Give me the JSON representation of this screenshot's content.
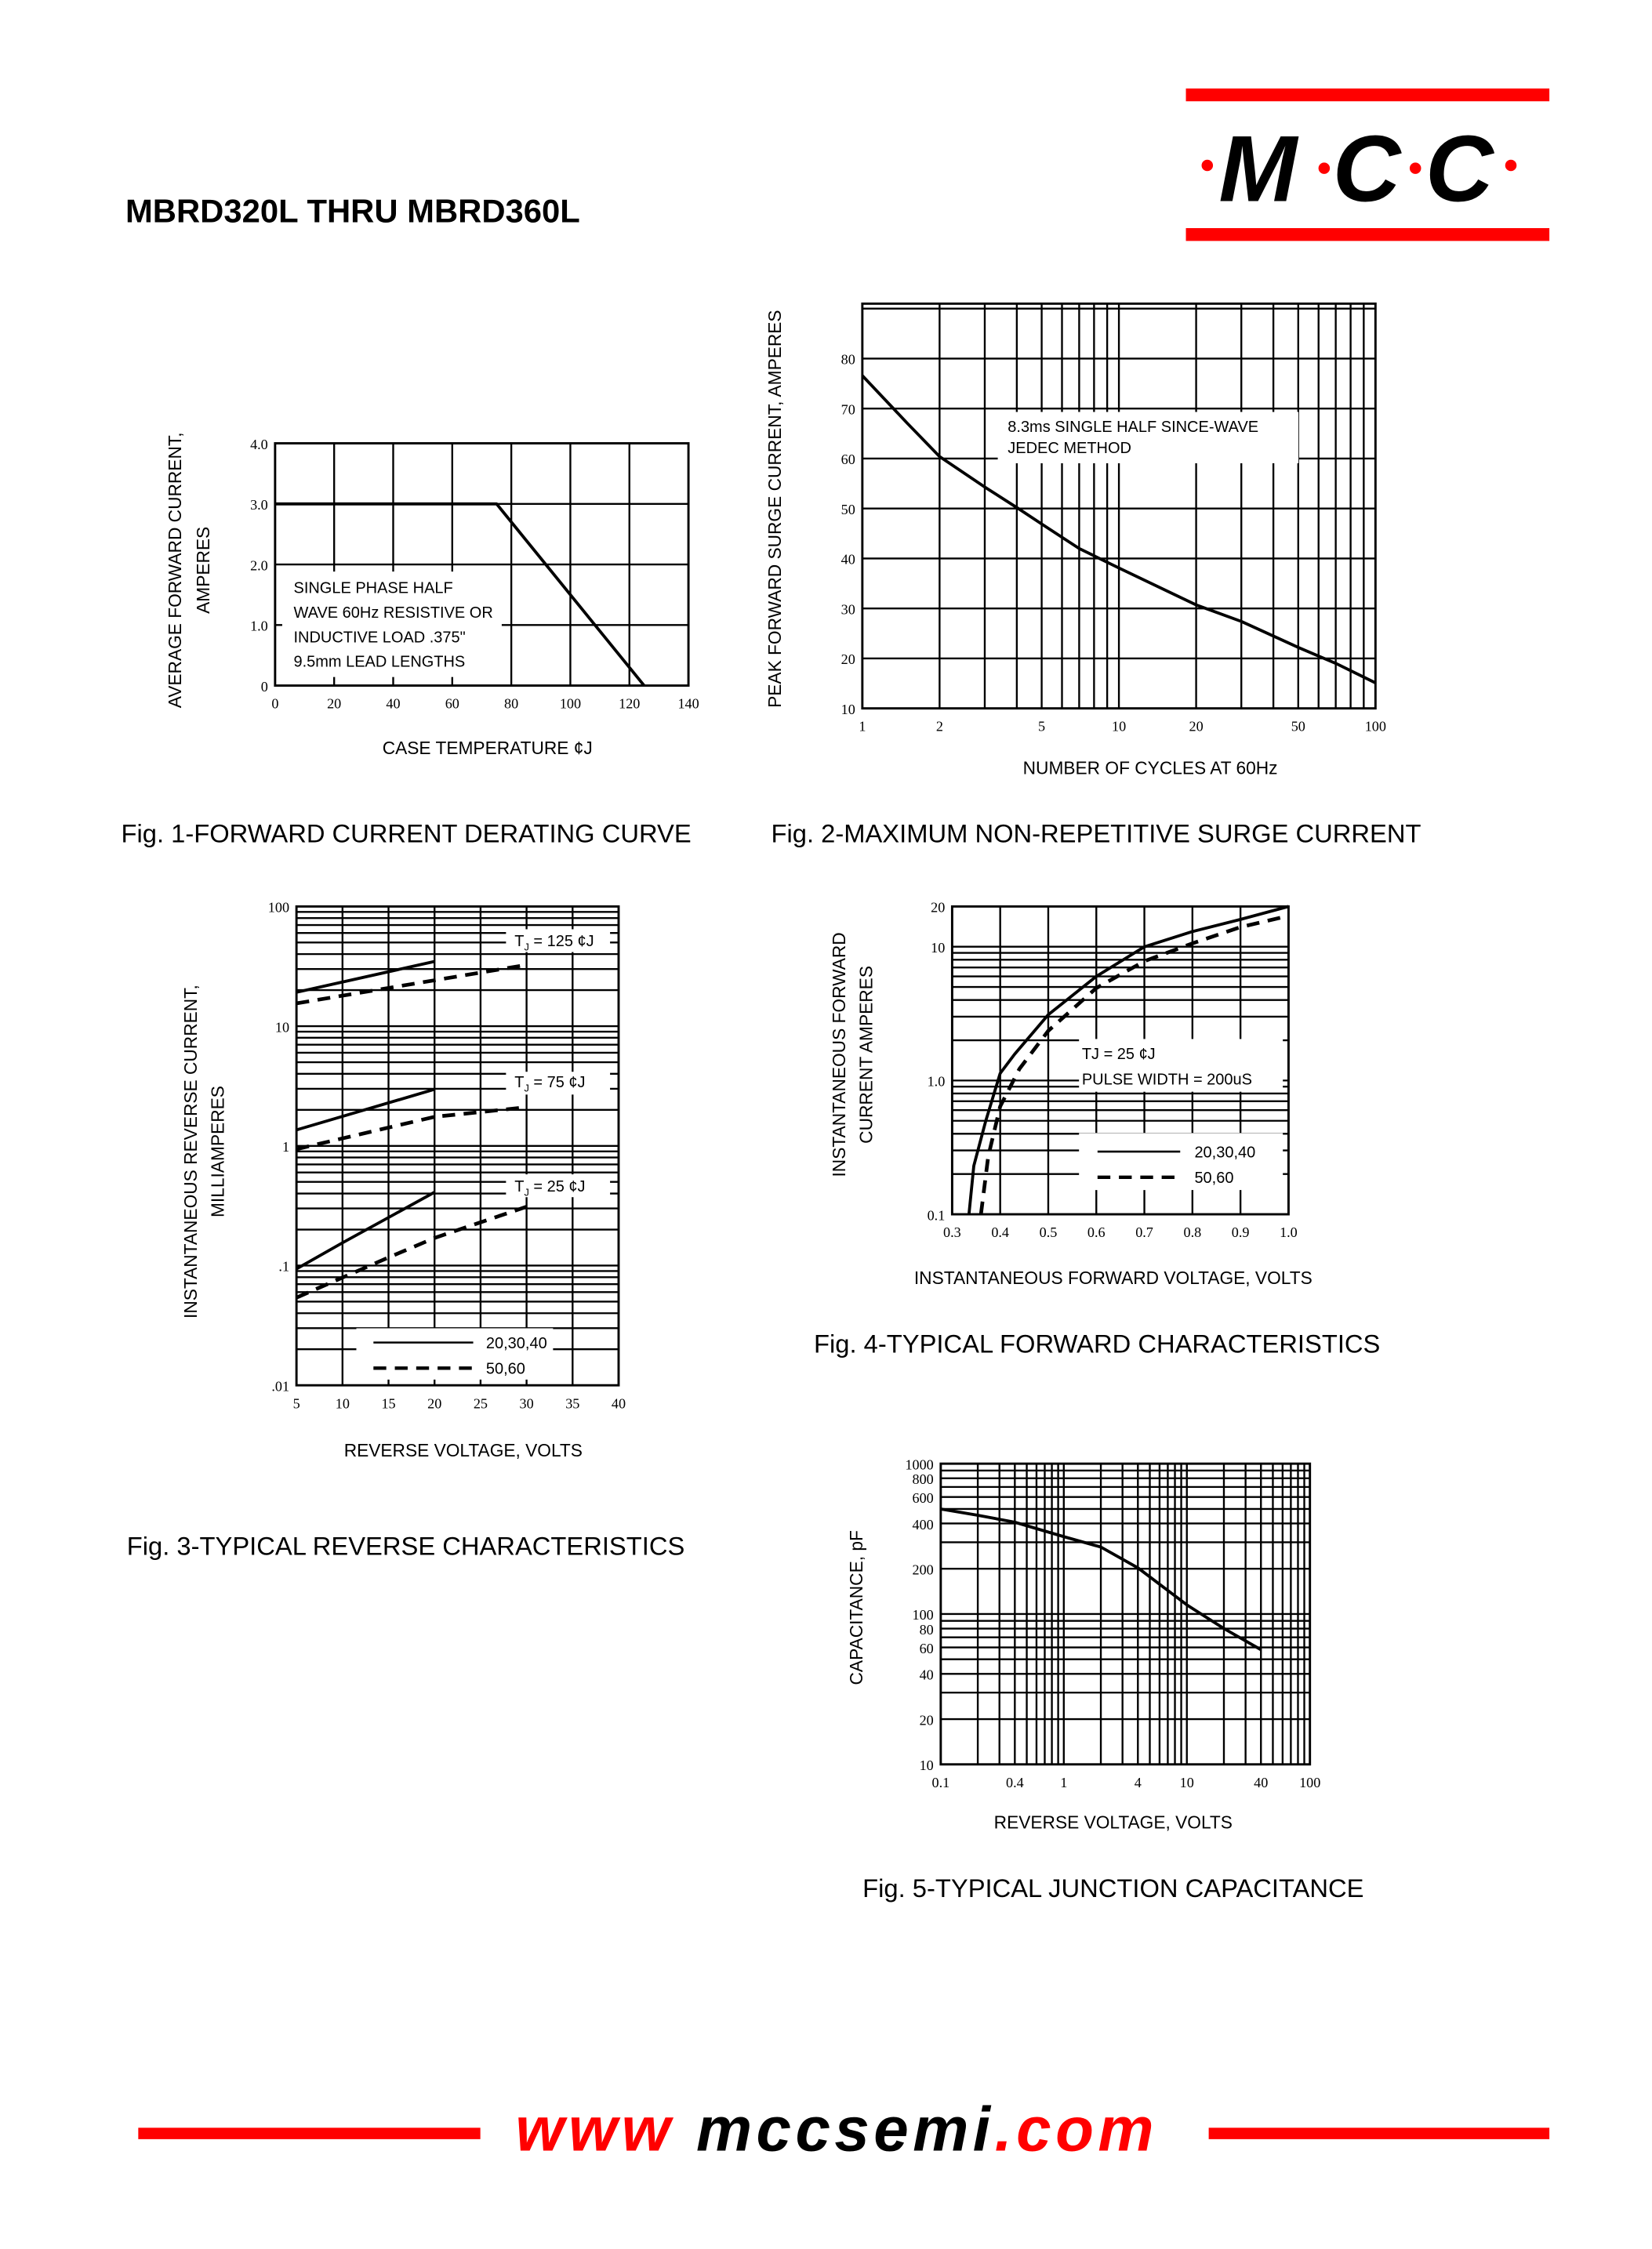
{
  "header": {
    "title": "MBRD320L THRU MBRD360L"
  },
  "logo": {
    "letters": [
      "M",
      "C",
      "C"
    ],
    "brand_color": "#ff0000"
  },
  "footer": {
    "prefix": "www ",
    "domain": "mccsemi",
    "suffix": ".com"
  },
  "chart_data": [
    {
      "type": "line",
      "caption": "Fig. 1-FORWARD CURRENT DERATING CURVE",
      "ylabel": [
        "AVERAGE FORWARD CURRENT,",
        "AMPERES"
      ],
      "xlabel": "CASE TEMPERATURE ¢J",
      "xlim": [
        0,
        140
      ],
      "ylim": [
        0,
        4
      ],
      "xscale": "linear",
      "yscale": "linear",
      "x_ticks": [
        0,
        20,
        40,
        60,
        80,
        100,
        120,
        140
      ],
      "x_tick_labels": [
        "0",
        "20",
        "40",
        "60",
        "80",
        "100",
        "120",
        "140"
      ],
      "y_ticks": [
        0,
        1,
        2,
        3,
        4
      ],
      "y_tick_labels": [
        "0",
        "1.0",
        "2.0",
        "3.0",
        "4.0"
      ],
      "grid": true,
      "notes": [
        "SINGLE PHASE HALF",
        "WAVE 60Hz RESISTIVE OR",
        "INDUCTIVE LOAD .375\"",
        "9.5mm LEAD LENGTHS"
      ],
      "series": [
        {
          "style": "solid",
          "x": [
            0,
            75,
            125
          ],
          "y": [
            3,
            3,
            0
          ]
        }
      ]
    },
    {
      "type": "line",
      "caption": "Fig. 2-MAXIMUM NON-REPETITIVE SURGE CURRENT",
      "ylabel": [
        "PEAK FORWARD SURGE CURRENT, AMPERES"
      ],
      "xlabel": "NUMBER OF CYCLES AT 60Hz",
      "xlim": [
        1,
        100
      ],
      "ylim": [
        10,
        91
      ],
      "xscale": "log",
      "yscale": "linear",
      "x_ticks": [
        1,
        2,
        5,
        10,
        20,
        50,
        100
      ],
      "x_tick_labels": [
        "1",
        "2",
        "5",
        "10",
        "20",
        "50",
        "100"
      ],
      "y_ticks": [
        10,
        20,
        30,
        40,
        50,
        60,
        70,
        80
      ],
      "y_tick_labels": [
        "10",
        "20",
        "30",
        "40",
        "50",
        "60",
        "70",
        "80"
      ],
      "grid": true,
      "notes": [
        "8.3ms SINGLE HALF SINCE-WAVE",
        "JEDEC METHOD"
      ],
      "series": [
        {
          "style": "solid",
          "x": [
            1,
            1.5,
            2,
            3,
            4,
            5,
            7,
            10,
            20,
            30,
            50,
            70,
            100
          ],
          "y": [
            76.6,
            67,
            60.4,
            54.3,
            50.2,
            46.9,
            42,
            38.1,
            30.7,
            27.4,
            22.2,
            19,
            15.1
          ]
        }
      ]
    },
    {
      "type": "line",
      "caption": "Fig. 3-TYPICAL REVERSE CHARACTERISTICS",
      "ylabel": [
        "INSTANTANEOUS REVERSE CURRENT,",
        "MILLIAMPERES"
      ],
      "xlabel": "REVERSE VOLTAGE, VOLTS",
      "xlim": [
        5,
        40
      ],
      "ylim": [
        0.01,
        100
      ],
      "xscale": "linear",
      "yscale": "log",
      "x_ticks": [
        5,
        10,
        15,
        20,
        25,
        30,
        35,
        40
      ],
      "x_tick_labels": [
        "5",
        "10",
        "15",
        "20",
        "25",
        "30",
        "35",
        "40"
      ],
      "y_ticks": [
        0.01,
        0.1,
        1,
        10,
        100
      ],
      "y_tick_labels": [
        ".01",
        ".1",
        "1",
        "10",
        "100"
      ],
      "grid": true,
      "temp_labels": [
        {
          "t": "T",
          "sub": "J",
          "rest": " = 125 ¢J"
        },
        {
          "t": "T",
          "sub": "J",
          "rest": " = 75 ¢J"
        },
        {
          "t": "T",
          "sub": "J",
          "rest": " = 25 ¢J"
        }
      ],
      "legend": [
        {
          "style": "solid",
          "label": "20,30,40"
        },
        {
          "style": "dashed",
          "label": "50,60"
        }
      ],
      "series": [
        {
          "group": "TJ=125",
          "style": "solid",
          "x": [
            5,
            20
          ],
          "y": [
            19.2,
            34.7
          ]
        },
        {
          "group": "TJ=125",
          "style": "dashed",
          "x": [
            5,
            30
          ],
          "y": [
            15.5,
            32.5
          ]
        },
        {
          "group": "TJ=75",
          "style": "solid",
          "x": [
            5,
            20
          ],
          "y": [
            1.36,
            2.97
          ]
        },
        {
          "group": "TJ=75",
          "style": "dashed",
          "x": [
            5,
            20,
            30
          ],
          "y": [
            0.94,
            1.75,
            2.1
          ]
        },
        {
          "group": "TJ=25",
          "style": "solid",
          "x": [
            5,
            10,
            20
          ],
          "y": [
            0.094,
            0.155,
            0.41
          ]
        },
        {
          "group": "TJ=25",
          "style": "dashed",
          "x": [
            5,
            15,
            20,
            30
          ],
          "y": [
            0.054,
            0.117,
            0.17,
            0.31
          ]
        }
      ]
    },
    {
      "type": "line",
      "caption": "Fig. 4-TYPICAL FORWARD CHARACTERISTICS",
      "ylabel": [
        "INSTANTANEOUS FORWARD",
        "CURRENT AMPERES"
      ],
      "xlabel": "INSTANTANEOUS FORWARD VOLTAGE, VOLTS",
      "xlim": [
        0.3,
        1.0
      ],
      "ylim": [
        0.1,
        20
      ],
      "xscale": "linear",
      "yscale": "log",
      "x_ticks": [
        0.3,
        0.4,
        0.5,
        0.6,
        0.7,
        0.8,
        0.9,
        1.0
      ],
      "x_tick_labels": [
        "0.3",
        "0.4",
        "0.5",
        "0.6",
        "0.7",
        "0.8",
        "0.9",
        "1.0"
      ],
      "y_ticks": [
        0.1,
        1,
        10,
        20
      ],
      "y_tick_labels": [
        "0.1",
        "1.0",
        "10",
        "20"
      ],
      "grid": true,
      "notes": [
        "TJ = 25  ¢J",
        "PULSE WIDTH = 200uS"
      ],
      "legend": [
        {
          "style": "solid",
          "label": "20,30,40"
        },
        {
          "style": "dashed",
          "label": "50,60"
        }
      ],
      "series": [
        {
          "style": "solid",
          "x": [
            0.335,
            0.345,
            0.37,
            0.4,
            0.43,
            0.5,
            0.6,
            0.7,
            0.8,
            0.9,
            1.0
          ],
          "y": [
            0.1,
            0.23,
            0.5,
            1.13,
            1.57,
            3.1,
            6.0,
            10,
            13,
            16,
            20
          ]
        },
        {
          "style": "dashed",
          "x": [
            0.36,
            0.375,
            0.4,
            0.44,
            0.5,
            0.6,
            0.7,
            0.8,
            0.9,
            0.99
          ],
          "y": [
            0.1,
            0.27,
            0.64,
            1.22,
            2.35,
            4.9,
            7.8,
            10.6,
            14,
            16.7
          ]
        }
      ]
    },
    {
      "type": "line",
      "caption": "Fig. 5-TYPICAL JUNCTION CAPACITANCE",
      "ylabel": [
        "CAPACITANCE, pF"
      ],
      "xlabel": "REVERSE VOLTAGE, VOLTS",
      "xlim": [
        0.1,
        100
      ],
      "ylim": [
        10,
        1000
      ],
      "xscale": "log",
      "yscale": "log",
      "x_ticks": [
        0.1,
        0.4,
        1,
        4,
        10,
        40,
        100
      ],
      "x_tick_labels": [
        "0.1",
        "0.4",
        "1",
        "4",
        "10",
        "40",
        "100"
      ],
      "y_ticks": [
        10,
        20,
        40,
        60,
        80,
        100,
        200,
        400,
        600,
        800,
        1000
      ],
      "y_tick_labels": [
        "10",
        "20",
        "40",
        "60",
        "80",
        "100",
        "200",
        "400",
        "600",
        "800",
        "1000"
      ],
      "grid": true,
      "series": [
        {
          "style": "solid",
          "x": [
            0.1,
            0.2,
            0.4,
            1,
            2,
            4,
            10,
            20,
            40
          ],
          "y": [
            500,
            454,
            408,
            327,
            279,
            203,
            115,
            80,
            58
          ]
        }
      ]
    }
  ]
}
